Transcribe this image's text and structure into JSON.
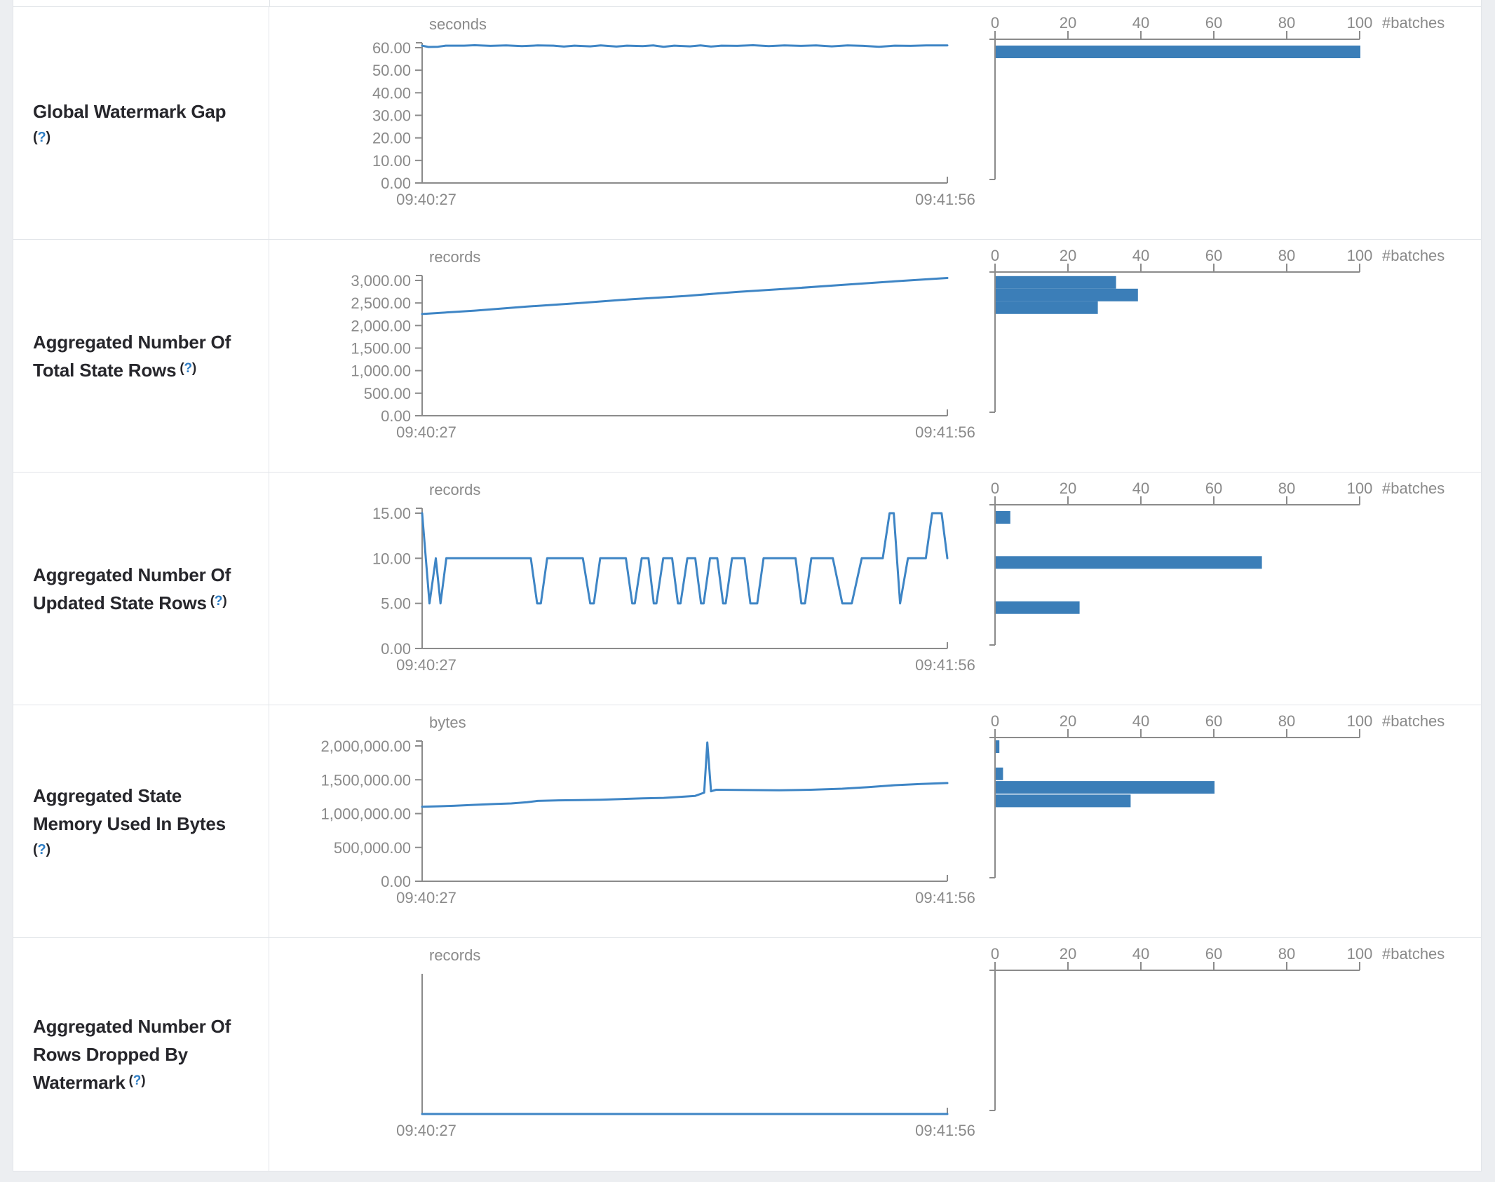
{
  "colors": {
    "line": "#3e85c5",
    "bar": "#3b7eb8",
    "axis": "#8b8b8b",
    "tick_text": "#8a8a8a",
    "label_text": "#26262b",
    "help": "#2e7dc4",
    "border": "#e2e5e9",
    "page_bg": "#eceef1"
  },
  "axes": {
    "time_start": "09:40:27",
    "time_end": "09:41:56",
    "batches_ticks": [
      "0",
      "20",
      "40",
      "60",
      "80",
      "100"
    ],
    "batches_label": "#batches"
  },
  "rows": [
    {
      "id": "global-watermark-gap",
      "label_lines": [
        "Global Watermark Gap"
      ],
      "help_label": "(?)",
      "help_inline": false
    },
    {
      "id": "aggregated-total-state-rows",
      "label_lines": [
        "Aggregated Number Of",
        "Total State Rows"
      ],
      "help_label": "(?)",
      "help_inline": true
    },
    {
      "id": "aggregated-updated-state-rows",
      "label_lines": [
        "Aggregated Number Of",
        "Updated State Rows"
      ],
      "help_label": "(?)",
      "help_inline": true
    },
    {
      "id": "aggregated-state-memory-bytes",
      "label_lines": [
        "Aggregated State",
        "Memory Used In Bytes"
      ],
      "help_label": "(?)",
      "help_inline": false
    },
    {
      "id": "aggregated-rows-dropped-by-watermark",
      "label_lines": [
        "Aggregated Number Of",
        "Rows Dropped By",
        "Watermark"
      ],
      "help_label": "(?)",
      "help_inline": true
    }
  ],
  "chart_data": [
    {
      "type": "line",
      "row": "Global Watermark Gap",
      "unit": "seconds",
      "timeline": {
        "x_start": "09:40:27",
        "x_end": "09:41:56",
        "ylim": [
          0,
          63
        ],
        "v_top": 60,
        "y_ticks": [
          {
            "v": 0,
            "label": "0.00"
          },
          {
            "v": 10,
            "label": "10.00"
          },
          {
            "v": 20,
            "label": "20.00"
          },
          {
            "v": 30,
            "label": "30.00"
          },
          {
            "v": 40,
            "label": "40.00"
          },
          {
            "v": 50,
            "label": "50.00"
          },
          {
            "v": 60,
            "label": "60.00"
          }
        ],
        "points": [
          [
            0,
            60.9
          ],
          [
            0.012,
            60.3
          ],
          [
            0.03,
            60.4
          ],
          [
            0.045,
            60.9
          ],
          [
            0.08,
            60.9
          ],
          [
            0.1,
            61.1
          ],
          [
            0.13,
            60.8
          ],
          [
            0.16,
            61.0
          ],
          [
            0.19,
            60.7
          ],
          [
            0.22,
            61.0
          ],
          [
            0.25,
            60.9
          ],
          [
            0.27,
            60.5
          ],
          [
            0.29,
            60.9
          ],
          [
            0.32,
            60.6
          ],
          [
            0.34,
            61.0
          ],
          [
            0.37,
            60.5
          ],
          [
            0.39,
            60.9
          ],
          [
            0.42,
            60.7
          ],
          [
            0.44,
            61.0
          ],
          [
            0.46,
            60.4
          ],
          [
            0.48,
            60.9
          ],
          [
            0.51,
            60.6
          ],
          [
            0.53,
            61.0
          ],
          [
            0.55,
            60.5
          ],
          [
            0.57,
            60.9
          ],
          [
            0.6,
            60.8
          ],
          [
            0.63,
            61.1
          ],
          [
            0.66,
            60.7
          ],
          [
            0.69,
            61.0
          ],
          [
            0.72,
            60.8
          ],
          [
            0.75,
            61.0
          ],
          [
            0.78,
            60.6
          ],
          [
            0.81,
            61.0
          ],
          [
            0.84,
            60.8
          ],
          [
            0.87,
            60.4
          ],
          [
            0.9,
            60.9
          ],
          [
            0.93,
            60.8
          ],
          [
            0.96,
            61.0
          ],
          [
            1,
            61.0
          ]
        ]
      },
      "histogram": {
        "xlabel": "#batches",
        "x_ticks": [
          0,
          20,
          40,
          60,
          80,
          100
        ],
        "bars": [
          {
            "value": 60,
            "batches": 100
          }
        ]
      }
    },
    {
      "type": "line",
      "row": "Aggregated Number Of Total State Rows",
      "unit": "records",
      "timeline": {
        "x_start": "09:40:27",
        "x_end": "09:41:56",
        "ylim": [
          0,
          3150
        ],
        "v_top": 3000,
        "y_ticks": [
          {
            "v": 0,
            "label": "0.00"
          },
          {
            "v": 500,
            "label": "500.00"
          },
          {
            "v": 1000,
            "label": "1,000.00"
          },
          {
            "v": 1500,
            "label": "1,500.00"
          },
          {
            "v": 2000,
            "label": "2,000.00"
          },
          {
            "v": 2500,
            "label": "2,500.00"
          },
          {
            "v": 3000,
            "label": "3,000.00"
          }
        ],
        "points": [
          [
            0,
            2255
          ],
          [
            0.1,
            2330
          ],
          [
            0.2,
            2420
          ],
          [
            0.3,
            2500
          ],
          [
            0.4,
            2585
          ],
          [
            0.5,
            2655
          ],
          [
            0.6,
            2745
          ],
          [
            0.7,
            2820
          ],
          [
            0.8,
            2900
          ],
          [
            0.9,
            2980
          ],
          [
            1,
            3055
          ]
        ]
      },
      "histogram": {
        "xlabel": "#batches",
        "x_ticks": [
          0,
          20,
          40,
          60,
          80,
          100
        ],
        "bars": [
          {
            "value": 3050,
            "batches": 33
          },
          {
            "value": 2770,
            "batches": 39
          },
          {
            "value": 2490,
            "batches": 28
          }
        ]
      }
    },
    {
      "type": "line",
      "row": "Aggregated Number Of Updated State Rows",
      "unit": "records",
      "timeline": {
        "x_start": "09:40:27",
        "x_end": "09:41:56",
        "ylim": [
          0,
          15.75
        ],
        "v_top": 15,
        "y_ticks": [
          {
            "v": 0,
            "label": "0.00"
          },
          {
            "v": 5,
            "label": "5.00"
          },
          {
            "v": 10,
            "label": "10.00"
          },
          {
            "v": 15,
            "label": "15.00"
          }
        ],
        "points": [
          [
            0,
            15
          ],
          [
            0.014,
            5
          ],
          [
            0.026,
            10
          ],
          [
            0.035,
            5
          ],
          [
            0.046,
            10
          ],
          [
            0.207,
            10
          ],
          [
            0.219,
            5
          ],
          [
            0.226,
            5
          ],
          [
            0.238,
            10
          ],
          [
            0.306,
            10
          ],
          [
            0.32,
            5
          ],
          [
            0.327,
            5
          ],
          [
            0.339,
            10
          ],
          [
            0.388,
            10
          ],
          [
            0.4,
            5
          ],
          [
            0.405,
            5
          ],
          [
            0.418,
            10
          ],
          [
            0.431,
            10
          ],
          [
            0.441,
            5
          ],
          [
            0.446,
            5
          ],
          [
            0.459,
            10
          ],
          [
            0.476,
            10
          ],
          [
            0.487,
            5
          ],
          [
            0.492,
            5
          ],
          [
            0.505,
            10
          ],
          [
            0.52,
            10
          ],
          [
            0.531,
            5
          ],
          [
            0.536,
            5
          ],
          [
            0.548,
            10
          ],
          [
            0.562,
            10
          ],
          [
            0.573,
            5
          ],
          [
            0.578,
            5
          ],
          [
            0.59,
            10
          ],
          [
            0.614,
            10
          ],
          [
            0.625,
            5
          ],
          [
            0.638,
            5
          ],
          [
            0.65,
            10
          ],
          [
            0.711,
            10
          ],
          [
            0.722,
            5
          ],
          [
            0.729,
            5
          ],
          [
            0.741,
            10
          ],
          [
            0.782,
            10
          ],
          [
            0.8,
            5
          ],
          [
            0.818,
            5
          ],
          [
            0.837,
            10
          ],
          [
            0.877,
            10
          ],
          [
            0.89,
            15
          ],
          [
            0.898,
            15
          ],
          [
            0.91,
            5
          ],
          [
            0.925,
            10
          ],
          [
            0.959,
            10
          ],
          [
            0.971,
            15
          ],
          [
            0.989,
            15
          ],
          [
            1,
            10
          ]
        ]
      },
      "histogram": {
        "xlabel": "#batches",
        "x_ticks": [
          0,
          20,
          40,
          60,
          80,
          100
        ],
        "bars": [
          {
            "value": 15,
            "batches": 4
          },
          {
            "value": 10,
            "batches": 73
          },
          {
            "value": 5,
            "batches": 23
          }
        ]
      }
    },
    {
      "type": "line",
      "row": "Aggregated State Memory Used In Bytes",
      "unit": "bytes",
      "timeline": {
        "x_start": "09:40:27",
        "x_end": "09:41:56",
        "ylim": [
          0,
          2100000
        ],
        "v_top": 2000000,
        "y_ticks": [
          {
            "v": 0,
            "label": "0.00"
          },
          {
            "v": 500000,
            "label": "500,000.00"
          },
          {
            "v": 1000000,
            "label": "1,000,000.00"
          },
          {
            "v": 1500000,
            "label": "1,500,000.00"
          },
          {
            "v": 2000000,
            "label": "2,000,000.00"
          }
        ],
        "points": [
          [
            0,
            1100000
          ],
          [
            0.03,
            1108000
          ],
          [
            0.06,
            1115000
          ],
          [
            0.1,
            1130000
          ],
          [
            0.14,
            1142000
          ],
          [
            0.17,
            1150000
          ],
          [
            0.2,
            1168000
          ],
          [
            0.22,
            1188000
          ],
          [
            0.26,
            1196000
          ],
          [
            0.3,
            1200000
          ],
          [
            0.34,
            1205000
          ],
          [
            0.38,
            1216000
          ],
          [
            0.42,
            1226000
          ],
          [
            0.46,
            1232000
          ],
          [
            0.5,
            1252000
          ],
          [
            0.52,
            1262000
          ],
          [
            0.53,
            1290000
          ],
          [
            0.537,
            1310000
          ],
          [
            0.543,
            2052000
          ],
          [
            0.55,
            1330000
          ],
          [
            0.56,
            1352000
          ],
          [
            0.62,
            1348000
          ],
          [
            0.68,
            1345000
          ],
          [
            0.74,
            1352000
          ],
          [
            0.8,
            1368000
          ],
          [
            0.85,
            1392000
          ],
          [
            0.9,
            1420000
          ],
          [
            0.95,
            1438000
          ],
          [
            1,
            1452000
          ]
        ]
      },
      "histogram": {
        "xlabel": "#batches",
        "x_ticks": [
          0,
          20,
          40,
          60,
          80,
          100
        ],
        "bars": [
          {
            "value": 2052000,
            "batches": 1
          },
          {
            "value": 1650000,
            "batches": 2
          },
          {
            "value": 1450000,
            "batches": 60
          },
          {
            "value": 1250000,
            "batches": 37
          }
        ]
      }
    },
    {
      "type": "line",
      "row": "Aggregated Number Of Rows Dropped By Watermark",
      "unit": "records",
      "timeline": {
        "x_start": "09:40:27",
        "x_end": "09:41:56",
        "ylim": [
          0,
          1
        ],
        "v_top": 1,
        "y_ticks": [],
        "points": [
          [
            0,
            0
          ],
          [
            1,
            0
          ]
        ]
      },
      "histogram": {
        "xlabel": "#batches",
        "x_ticks": [
          0,
          20,
          40,
          60,
          80,
          100
        ],
        "bars": []
      }
    }
  ]
}
